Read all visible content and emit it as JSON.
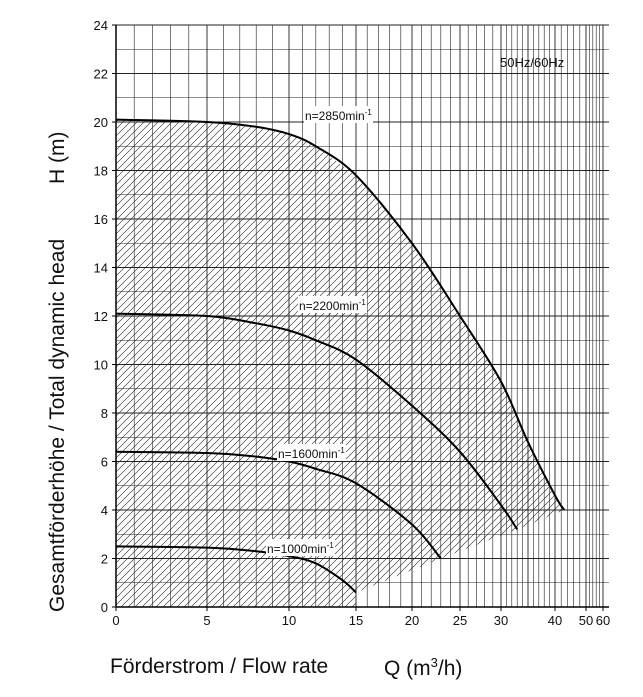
{
  "chart_data": {
    "type": "line",
    "title": "",
    "ylabel": "Gesamtförderhöhe / Total dynamic head",
    "ylabel_symbol": "H (m)",
    "xlabel": "Förderstrom / Flow rate",
    "xlabel_symbol": "Q (m",
    "xlabel_symbol_sup": "3",
    "xlabel_symbol_end": "/h)",
    "annotation": "50Hz/60Hz",
    "x_scale": "non-linear (compressed toward high flow)",
    "ylim": [
      0,
      24
    ],
    "y_ticks": [
      0,
      2,
      4,
      6,
      8,
      10,
      12,
      14,
      16,
      18,
      20,
      22,
      24
    ],
    "x_ticks": [
      0,
      5,
      10,
      15,
      20,
      25,
      30,
      40,
      50,
      60
    ],
    "grid": true,
    "hatched_region": "operating range under n=2850min-1 curve",
    "series": [
      {
        "name": "n=2850min",
        "label_sup": "-1",
        "color": "#000000",
        "x": [
          0,
          5,
          8,
          10,
          12,
          15,
          20,
          25,
          30,
          35,
          40,
          43
        ],
        "y": [
          20.1,
          20.0,
          19.8,
          19.5,
          19.0,
          17.8,
          15.0,
          12.0,
          9.3,
          6.8,
          4.6,
          4.0
        ]
      },
      {
        "name": "n=2200min",
        "label_sup": "-1",
        "color": "#000000",
        "x": [
          0,
          5,
          8,
          10,
          12,
          15,
          20,
          25,
          30,
          33
        ],
        "y": [
          12.1,
          12.0,
          11.7,
          11.4,
          11.0,
          10.2,
          8.3,
          6.4,
          4.2,
          3.2
        ]
      },
      {
        "name": "n=1600min",
        "label_sup": "-1",
        "color": "#000000",
        "x": [
          0,
          5,
          8,
          10,
          12,
          15,
          20,
          23
        ],
        "y": [
          6.4,
          6.35,
          6.2,
          6.0,
          5.7,
          5.1,
          3.4,
          2.0
        ]
      },
      {
        "name": "n=1000min",
        "label_sup": "-1",
        "color": "#000000",
        "x": [
          0,
          5,
          8,
          10,
          12,
          14,
          15
        ],
        "y": [
          2.5,
          2.45,
          2.3,
          2.1,
          1.8,
          1.1,
          0.6
        ]
      }
    ]
  }
}
